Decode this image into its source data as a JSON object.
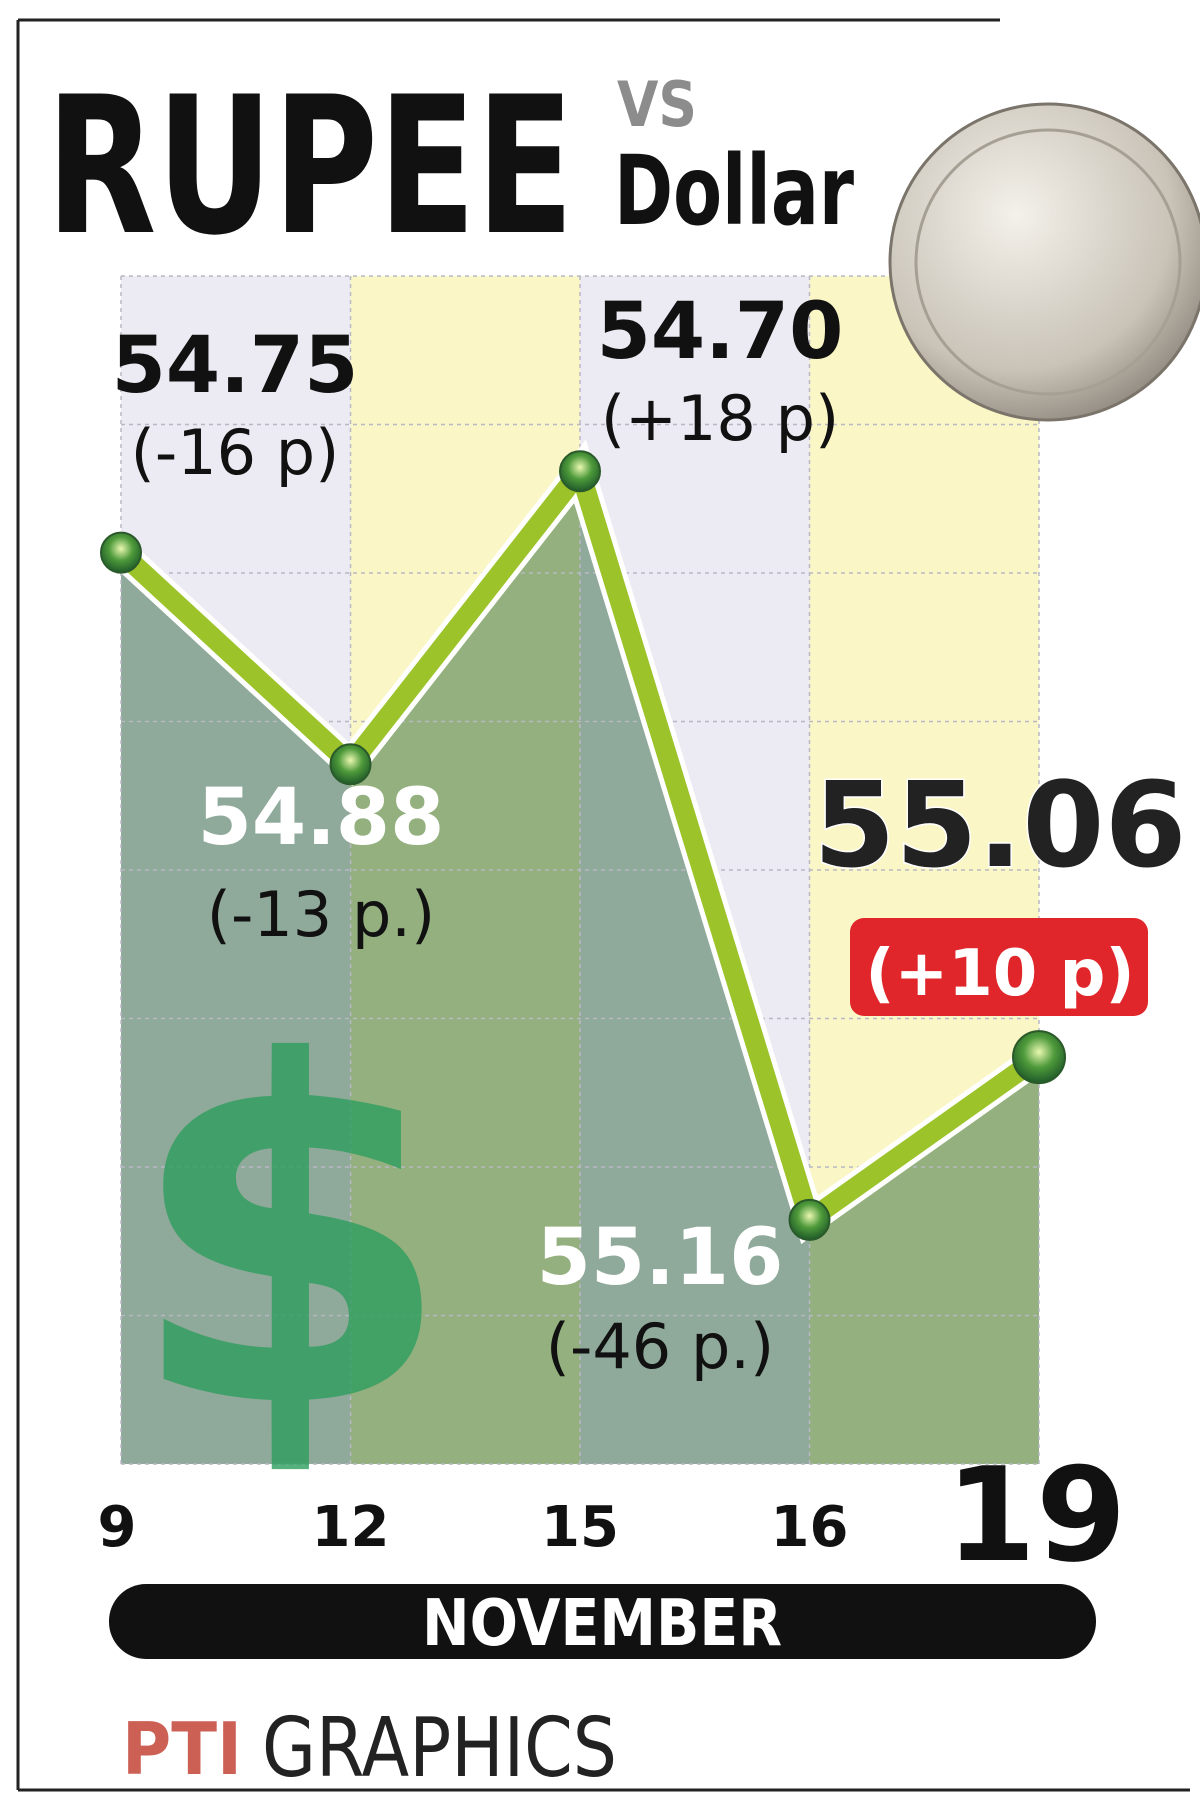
{
  "chart_data": {
    "type": "line",
    "title": "RUPEE",
    "title_vs": "VS",
    "title_sub": "Dollar",
    "categories": [
      "9",
      "12",
      "15",
      "16",
      "19"
    ],
    "x_label": "NOVEMBER",
    "series": [
      {
        "name": "Rupee vs Dollar",
        "color": "#9cc42a",
        "values": [
          54.75,
          54.88,
          54.7,
          55.16,
          55.06
        ],
        "value_labels": [
          "54.75",
          "54.88",
          "54.70",
          "55.16",
          "55.06"
        ],
        "changes": [
          "(-16 p)",
          "(-13 p.)",
          "(+18 p)",
          "(-46 p.)",
          "(+10 p)"
        ]
      }
    ],
    "ylim": [
      54.58,
      55.31
    ],
    "y_inverted": true,
    "grid": true,
    "symbol": "$",
    "source_logo": "PTI",
    "source": "GRAPHICS"
  }
}
